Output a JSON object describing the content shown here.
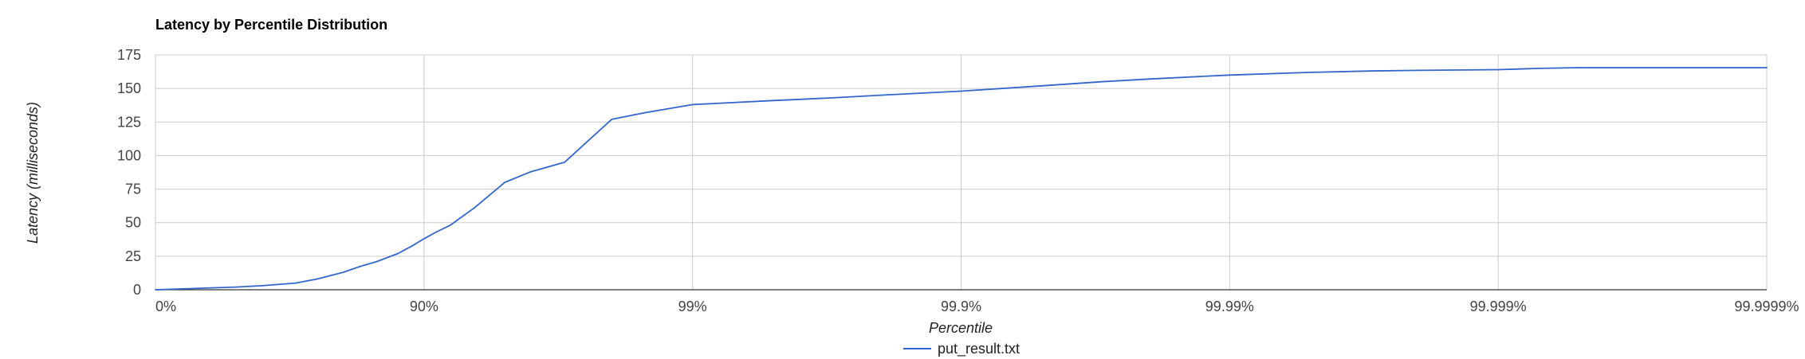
{
  "chart_data": {
    "type": "line",
    "title": "Latency by Percentile Distribution",
    "xlabel": "Percentile",
    "ylabel": "Latency (milliseconds)",
    "x_scale": "percentile-nines (log of 1/(1-p))",
    "x_ticks": [
      "0%",
      "90%",
      "99%",
      "99.9%",
      "99.99%",
      "99.999%",
      "99.9999%"
    ],
    "y_ticks": [
      0,
      25,
      50,
      75,
      100,
      125,
      150,
      175
    ],
    "ylim": [
      0,
      175
    ],
    "grid": true,
    "legend_position": "bottom",
    "colors": {
      "series": "#3366cc",
      "grid": "#cccccc",
      "axis": "#333333"
    },
    "series": [
      {
        "name": "put_result.txt",
        "x": [
          "0%",
          "50%",
          "60%",
          "70%",
          "75%",
          "80%",
          "82.5%",
          "85%",
          "87.5%",
          "89%",
          "90%",
          "91%",
          "92%",
          "93.5%",
          "95%",
          "96%",
          "97%",
          "98%",
          "98.5%",
          "99%",
          "99.5%",
          "99.7%",
          "99.8%",
          "99.9%",
          "99.95%",
          "99.97%",
          "99.98%",
          "99.99%",
          "99.995%",
          "99.997%",
          "99.998%",
          "99.999%",
          "99.9993%",
          "99.9995%",
          "99.9999%"
        ],
        "values": [
          0,
          2,
          3,
          5,
          8,
          13,
          17,
          21,
          27,
          33,
          38,
          43,
          48,
          61,
          80,
          88,
          95,
          127,
          132,
          138,
          141,
          143,
          145,
          148,
          152,
          155,
          157,
          160,
          162,
          163,
          163.5,
          164,
          165,
          165.5,
          165.5
        ]
      }
    ]
  }
}
